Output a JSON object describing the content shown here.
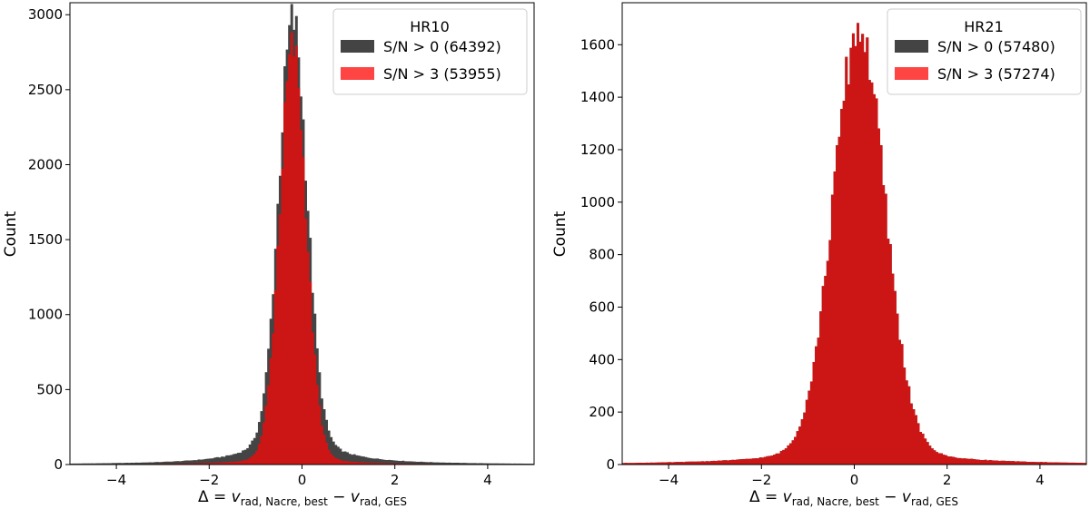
{
  "chart_data": [
    {
      "type": "histogram",
      "xlabel": "Δ = v rad, Nacre, best − v rad, GES",
      "xlabel_parts": {
        "prefix": "Δ = ",
        "var": "v",
        "sub1": "rad, Nacre, best",
        "minus": " − ",
        "sub2": "rad, GES"
      },
      "ylabel": "Count",
      "xlim": [
        -5,
        5
      ],
      "ylim": [
        0,
        3080
      ],
      "xticks": [
        -4,
        -2,
        0,
        2,
        4
      ],
      "xtick_labels": [
        "−4",
        "−2",
        "0",
        "2",
        "4"
      ],
      "yticks": [
        0,
        500,
        1000,
        1500,
        2000,
        2500,
        3000
      ],
      "ytick_labels": [
        "0",
        "500",
        "1000",
        "1500",
        "2000",
        "2500",
        "3000"
      ],
      "legend": {
        "title": "HR10",
        "position": "top-right",
        "entries": [
          {
            "label": "S/N > 0 (64392)",
            "color": "#444444"
          },
          {
            "label": "S/N > 3 (53955)",
            "color": "#ff4444"
          }
        ]
      },
      "bin_width": 0.05,
      "series": [
        {
          "name": "S/N > 0 (64392)",
          "color": "#444444",
          "center": -0.2,
          "peak": 2960,
          "core_sigma": 0.3,
          "wing_gamma": 0.75,
          "wing_weight": 0.09
        },
        {
          "name": "S/N > 3 (53955)",
          "color": "#cc1616",
          "center": -0.2,
          "peak": 2780,
          "core_sigma": 0.28,
          "wing_gamma": 0.5,
          "wing_weight": 0.05
        }
      ]
    },
    {
      "type": "histogram",
      "xlabel": "Δ = v rad, Nacre, best − v rad, GES",
      "xlabel_parts": {
        "prefix": "Δ = ",
        "var": "v",
        "sub1": "rad, Nacre, best",
        "minus": " − ",
        "sub2": "rad, GES"
      },
      "ylabel": "Count",
      "xlim": [
        -5,
        5
      ],
      "ylim": [
        0,
        1760
      ],
      "xticks": [
        -4,
        -2,
        0,
        2,
        4
      ],
      "xtick_labels": [
        "−4",
        "−2",
        "0",
        "2",
        "4"
      ],
      "yticks": [
        0,
        200,
        400,
        600,
        800,
        1000,
        1200,
        1400,
        1600
      ],
      "ytick_labels": [
        "0",
        "200",
        "400",
        "600",
        "800",
        "1000",
        "1200",
        "1400",
        "1600"
      ],
      "legend": {
        "title": "HR21",
        "position": "top-right",
        "entries": [
          {
            "label": "S/N > 0 (57480)",
            "color": "#444444"
          },
          {
            "label": "S/N > 3 (57274)",
            "color": "#ff4444"
          }
        ]
      },
      "bin_width": 0.05,
      "series": [
        {
          "name": "S/N > 0 (57480)",
          "color": "#444444",
          "center": 0.1,
          "peak": 1660,
          "core_sigma": 0.55,
          "wing_gamma": 1.4,
          "wing_weight": 0.05
        },
        {
          "name": "S/N > 3 (57274)",
          "color": "#cc1616",
          "center": 0.1,
          "peak": 1660,
          "core_sigma": 0.55,
          "wing_gamma": 1.4,
          "wing_weight": 0.05
        }
      ]
    }
  ]
}
